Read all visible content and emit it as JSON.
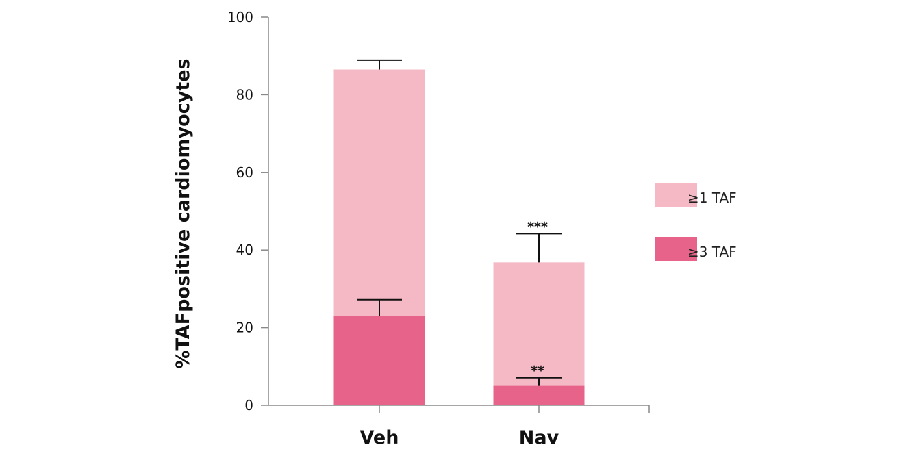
{
  "chart_data": {
    "type": "bar",
    "stacking": "overlay",
    "categories": [
      "Veh",
      "Nav"
    ],
    "ylabel": "%TAFpositive cardiomyocytes",
    "xlabel": "",
    "ylim": [
      0,
      100
    ],
    "yticks": [
      0,
      20,
      40,
      60,
      80,
      100
    ],
    "grid": false,
    "legend_position": "right",
    "series": [
      {
        "name": "≥1 TAF",
        "color": "#f5b8c5",
        "values": [
          86.5,
          36.8
        ],
        "errors": [
          2.4,
          7.4
        ],
        "significance": [
          "",
          "***"
        ]
      },
      {
        "name": "≥3 TAF",
        "color": "#e8638a",
        "values": [
          23.0,
          5.0
        ],
        "errors": [
          4.2,
          2.1
        ],
        "significance": [
          "",
          "**"
        ]
      }
    ]
  }
}
